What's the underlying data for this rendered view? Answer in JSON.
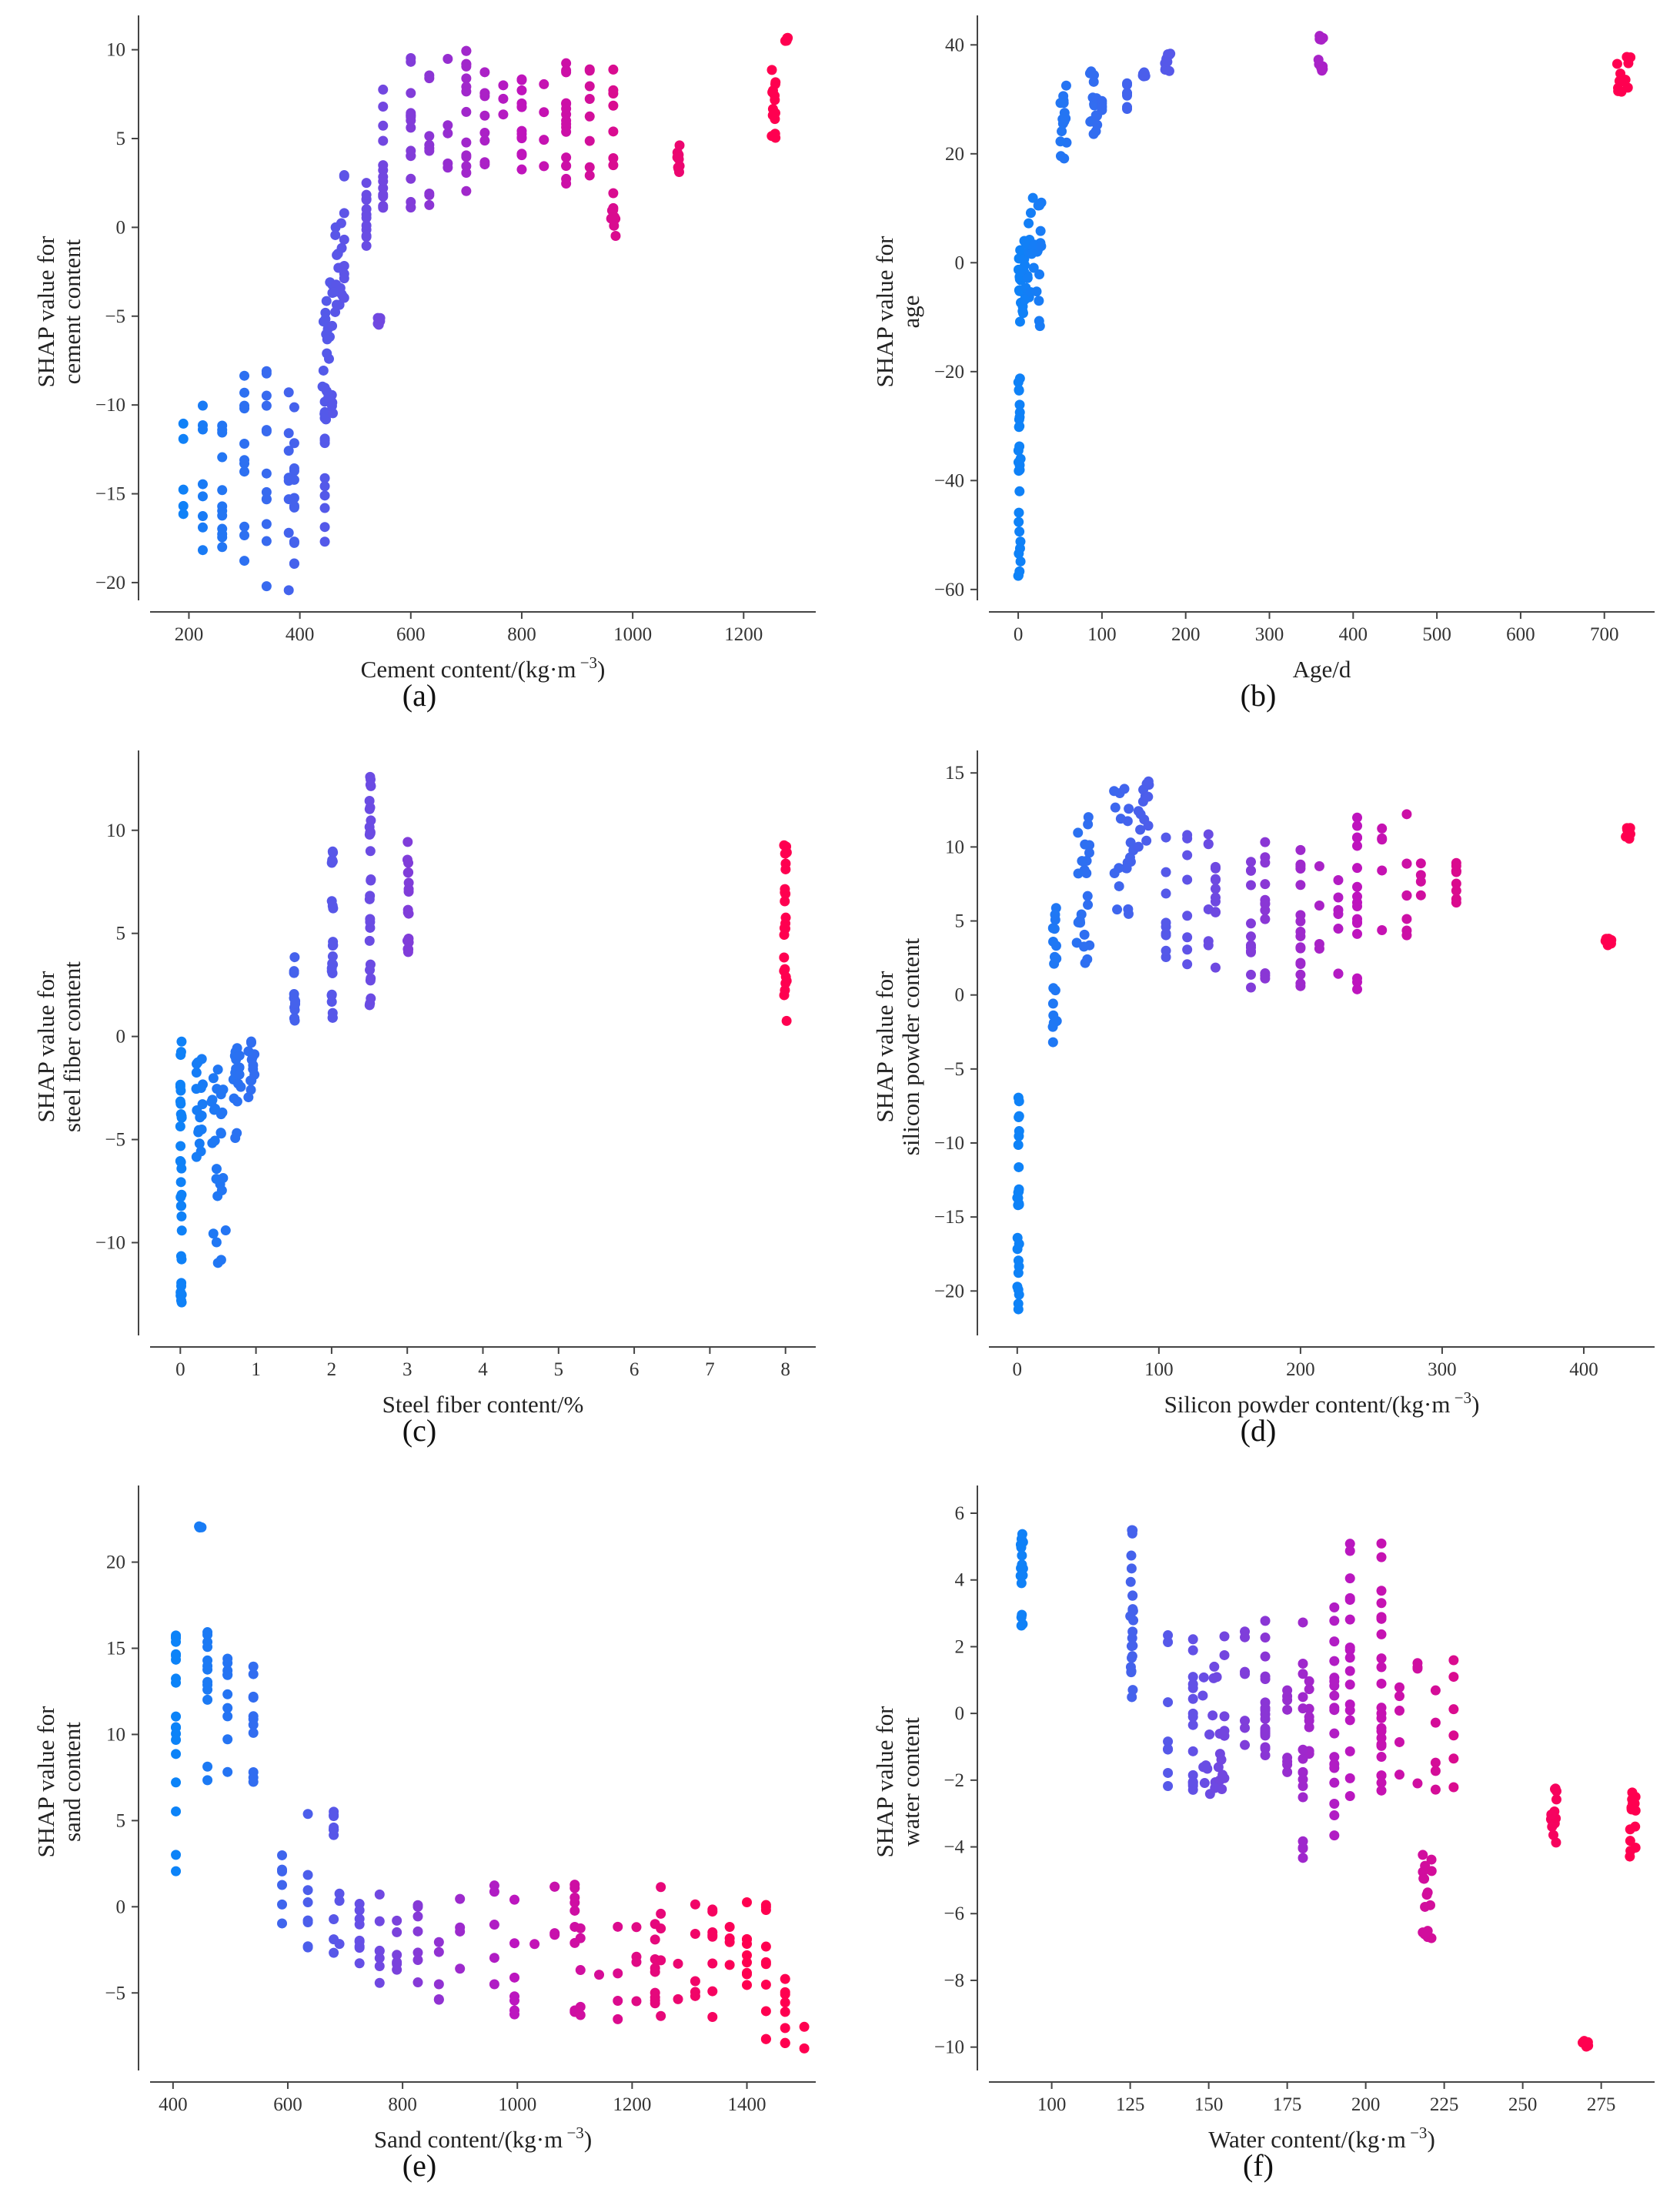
{
  "chart_data": [
    {
      "type": "scatter",
      "panel": "(a)",
      "xlabel": "Cement content/(kg·m",
      "xlabel_sup": "−3",
      "xlabel_end": ")",
      "ylabel_lines": [
        "SHAP value for",
        "cement content"
      ],
      "xlim": [
        130,
        1330
      ],
      "ylim": [
        -21,
        11.5
      ],
      "xticks": [
        200,
        400,
        600,
        800,
        1000,
        1200
      ],
      "yticks": [
        -20,
        -15,
        -10,
        -5,
        0,
        5,
        10
      ],
      "clusters": [
        {
          "x": [
            190,
            260
          ],
          "y": [
            -19,
            -10
          ]
        },
        {
          "x": [
            300,
            380
          ],
          "y": [
            -20.5,
            -7.5
          ]
        },
        {
          "x": [
            390,
            445
          ],
          "y": [
            -19,
            -9
          ]
        },
        {
          "x": [
            440,
            460
          ],
          "y": [
            -13,
            -3
          ]
        },
        {
          "x": [
            460,
            480
          ],
          "y": [
            -5,
            0.5
          ]
        },
        {
          "x": [
            480,
            520
          ],
          "y": [
            -4,
            3
          ]
        },
        {
          "x": [
            540,
            545
          ],
          "y": [
            -5.5,
            -5
          ]
        },
        {
          "x": [
            550,
            600
          ],
          "y": [
            1,
            9
          ]
        },
        {
          "x": [
            600,
            700
          ],
          "y": [
            0.5,
            10.3
          ]
        },
        {
          "x": [
            700,
            800
          ],
          "y": [
            2,
            9.5
          ]
        },
        {
          "x": [
            800,
            880
          ],
          "y": [
            3,
            9.3
          ]
        },
        {
          "x": [
            880,
            965
          ],
          "y": [
            1,
            9.8
          ]
        },
        {
          "x": [
            960,
            970
          ],
          "y": [
            -0.5,
            1
          ]
        },
        {
          "x": [
            1080,
            1085
          ],
          "y": [
            3,
            4.8
          ]
        },
        {
          "x": [
            1250,
            1258
          ],
          "y": [
            4.8,
            9.2
          ]
        },
        {
          "x": [
            1275,
            1280
          ],
          "y": [
            10.5,
            10.7
          ]
        }
      ]
    },
    {
      "type": "scatter",
      "panel": "(b)",
      "xlabel": "Age/d",
      "xlabel_sup": "",
      "xlabel_end": "",
      "ylabel_lines": [
        "SHAP value for",
        "age"
      ],
      "xlim": [
        -35,
        760
      ],
      "ylim": [
        -62,
        44
      ],
      "xticks": [
        0,
        100,
        200,
        300,
        400,
        500,
        600,
        700
      ],
      "yticks": [
        -60,
        -40,
        -20,
        0,
        20,
        40
      ],
      "clusters": [
        {
          "x": [
            0,
            3
          ],
          "y": [
            -58,
            -17
          ]
        },
        {
          "x": [
            0,
            8
          ],
          "y": [
            -12,
            4
          ]
        },
        {
          "x": [
            7,
            14
          ],
          "y": [
            -10,
            8
          ]
        },
        {
          "x": [
            14,
            28
          ],
          "y": [
            -12,
            12
          ]
        },
        {
          "x": [
            50,
            58
          ],
          "y": [
            19,
            35
          ]
        },
        {
          "x": [
            85,
            95
          ],
          "y": [
            20,
            36
          ]
        },
        {
          "x": [
            100,
            130
          ],
          "y": [
            28,
            35
          ]
        },
        {
          "x": [
            148,
            152
          ],
          "y": [
            34,
            35
          ]
        },
        {
          "x": [
            175,
            182
          ],
          "y": [
            33,
            39
          ]
        },
        {
          "x": [
            358,
            365
          ],
          "y": [
            32,
            42
          ]
        },
        {
          "x": [
            715,
            732
          ],
          "y": [
            31,
            40
          ]
        }
      ]
    },
    {
      "type": "scatter",
      "panel": "(c)",
      "xlabel": "Steel fiber content/%",
      "xlabel_sup": "",
      "xlabel_end": "",
      "ylabel_lines": [
        "SHAP value for",
        "steel fiber content"
      ],
      "xlim": [
        -0.4,
        8.4
      ],
      "ylim": [
        -14.5,
        13.5
      ],
      "xticks": [
        0,
        1,
        2,
        3,
        4,
        5,
        6,
        7,
        8
      ],
      "yticks": [
        -10,
        -5,
        0,
        5,
        10
      ],
      "clusters": [
        {
          "x": [
            0,
            0.02
          ],
          "y": [
            -13,
            0.5
          ]
        },
        {
          "x": [
            0.2,
            0.3
          ],
          "y": [
            -6,
            -1
          ]
        },
        {
          "x": [
            0.4,
            0.6
          ],
          "y": [
            -11,
            -1.5
          ]
        },
        {
          "x": [
            0.7,
            0.8
          ],
          "y": [
            -5,
            -0.5
          ]
        },
        {
          "x": [
            0.9,
            1.0
          ],
          "y": [
            -3,
            0
          ]
        },
        {
          "x": [
            1.5,
            1.52
          ],
          "y": [
            0.5,
            4
          ]
        },
        {
          "x": [
            2.0,
            2.02
          ],
          "y": [
            0.8,
            9.4
          ]
        },
        {
          "x": [
            2.5,
            2.52
          ],
          "y": [
            1.5,
            13
          ]
        },
        {
          "x": [
            3.0,
            3.02
          ],
          "y": [
            4,
            9.6
          ]
        },
        {
          "x": [
            7.98,
            8.02
          ],
          "y": [
            0.6,
            9.4
          ]
        }
      ]
    },
    {
      "type": "scatter",
      "panel": "(d)",
      "xlabel": "Silicon powder content/(kg·m",
      "xlabel_sup": "−3",
      "xlabel_end": ")",
      "ylabel_lines": [
        "SHAP value for",
        "silicon powder content"
      ],
      "xlim": [
        -20,
        450
      ],
      "ylim": [
        -23,
        16
      ],
      "xticks": [
        0,
        100,
        200,
        300,
        400
      ],
      "yticks": [
        -20,
        -15,
        -10,
        -5,
        0,
        5,
        10,
        15
      ],
      "clusters": [
        {
          "x": [
            0,
            1.5
          ],
          "y": [
            -21.5,
            -6
          ]
        },
        {
          "x": [
            25,
            28
          ],
          "y": [
            -4,
            6
          ]
        },
        {
          "x": [
            42,
            52
          ],
          "y": [
            2,
            13.5
          ]
        },
        {
          "x": [
            68,
            82
          ],
          "y": [
            5,
            14
          ]
        },
        {
          "x": [
            85,
            95
          ],
          "y": [
            10,
            14.5
          ]
        },
        {
          "x": [
            105,
            135
          ],
          "y": [
            2,
            11
          ]
        },
        {
          "x": [
            140,
            165
          ],
          "y": [
            0,
            9
          ]
        },
        {
          "x": [
            175,
            200
          ],
          "y": [
            1,
            11
          ]
        },
        {
          "x": [
            200,
            240
          ],
          "y": [
            0,
            9
          ]
        },
        {
          "x": [
            240,
            275
          ],
          "y": [
            4,
            12.3
          ]
        },
        {
          "x": [
            285,
            310
          ],
          "y": [
            6,
            9
          ]
        },
        {
          "x": [
            415,
            420
          ],
          "y": [
            3.3,
            3.8
          ]
        },
        {
          "x": [
            428,
            433
          ],
          "y": [
            10.5,
            11.3
          ]
        }
      ]
    },
    {
      "type": "scatter",
      "panel": "(e)",
      "xlabel": "Sand content/(kg·m",
      "xlabel_sup": "−3",
      "xlabel_end": ")",
      "ylabel_lines": [
        "SHAP value for",
        "sand content"
      ],
      "xlim": [
        360,
        1520
      ],
      "ylim": [
        -9.5,
        24
      ],
      "xticks": [
        400,
        600,
        800,
        1000,
        1200,
        1400
      ],
      "yticks": [
        -5,
        0,
        5,
        10,
        15,
        20
      ],
      "clusters": [
        {
          "x": [
            405,
            460
          ],
          "y": [
            1.7,
            16
          ]
        },
        {
          "x": [
            445,
            450
          ],
          "y": [
            22,
            22.1
          ]
        },
        {
          "x": [
            495,
            540
          ],
          "y": [
            7,
            15
          ]
        },
        {
          "x": [
            590,
            680
          ],
          "y": [
            -3,
            5.7
          ]
        },
        {
          "x": [
            690,
            760
          ],
          "y": [
            -4.6,
            1
          ]
        },
        {
          "x": [
            790,
            900
          ],
          "y": [
            -5.5,
            0.5
          ]
        },
        {
          "x": [
            960,
            1100
          ],
          "y": [
            -6.3,
            1.5
          ]
        },
        {
          "x": [
            1110,
            1240
          ],
          "y": [
            -7,
            -1
          ]
        },
        {
          "x": [
            1250,
            1400
          ],
          "y": [
            -6.5,
            1.3
          ]
        },
        {
          "x": [
            1400,
            1500
          ],
          "y": [
            -8.5,
            0.5
          ]
        }
      ]
    },
    {
      "type": "scatter",
      "panel": "(f)",
      "xlabel": "Water content/(kg·m",
      "xlabel_sup": "−3",
      "xlabel_end": ")",
      "ylabel_lines": [
        "SHAP value for",
        "water content"
      ],
      "xlim": [
        80,
        292
      ],
      "ylim": [
        -10.7,
        6.6
      ],
      "xticks": [
        100,
        125,
        150,
        175,
        200,
        225,
        250,
        275
      ],
      "yticks": [
        -10,
        -8,
        -6,
        -4,
        -2,
        0,
        2,
        4,
        6
      ],
      "clusters": [
        {
          "x": [
            90,
            91
          ],
          "y": [
            2.4,
            5.4
          ]
        },
        {
          "x": [
            125,
            126
          ],
          "y": [
            0.2,
            5.8
          ]
        },
        {
          "x": [
            137,
            145
          ],
          "y": [
            -2.3,
            2.6
          ]
        },
        {
          "x": [
            148,
            155
          ],
          "y": [
            -2.8,
            1.5
          ]
        },
        {
          "x": [
            155,
            168
          ],
          "y": [
            -1.2,
            2.9
          ]
        },
        {
          "x": [
            168,
            182
          ],
          "y": [
            -2,
            2.5
          ]
        },
        {
          "x": [
            180,
            190
          ],
          "y": [
            -4.6,
            3.2
          ]
        },
        {
          "x": [
            195,
            205
          ],
          "y": [
            -2.5,
            5.4
          ]
        },
        {
          "x": [
            205,
            228
          ],
          "y": [
            -2.7,
            1.8
          ]
        },
        {
          "x": [
            218,
            221
          ],
          "y": [
            -7,
            -4.2
          ]
        },
        {
          "x": [
            259,
            261
          ],
          "y": [
            -4.2,
            -2.2
          ]
        },
        {
          "x": [
            269,
            271
          ],
          "y": [
            -10,
            -9.8
          ]
        },
        {
          "x": [
            284,
            286
          ],
          "y": [
            -4.4,
            -2.1
          ]
        }
      ]
    }
  ]
}
